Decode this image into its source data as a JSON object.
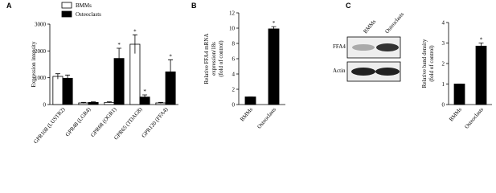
{
  "chart_data": [
    {
      "type": "bar",
      "panel_label": "A",
      "ylabel": [
        "Expression intensity"
      ],
      "categories": [
        "GPR108 (LUSTR2)",
        "GPR48 (LGR4)",
        "GPR68 (OGR1)",
        "GPR65 (TDAG8)",
        "GPR120 (FFA4)"
      ],
      "series": [
        {
          "name": "BMMs",
          "color": "#ffffff",
          "values": [
            1050,
            60,
            80,
            2250,
            60
          ],
          "errors": [
            100,
            20,
            20,
            350,
            20
          ],
          "annotations": [
            null,
            null,
            null,
            "*",
            null
          ]
        },
        {
          "name": "Osteoclasts",
          "color": "#000000",
          "values": [
            980,
            80,
            1720,
            280,
            1220
          ],
          "errors": [
            120,
            20,
            380,
            80,
            450
          ],
          "annotations": [
            null,
            null,
            "*",
            "*",
            "*"
          ]
        }
      ],
      "ylim": [
        0,
        3000
      ],
      "yticks": [
        0,
        1000,
        2000,
        3000
      ],
      "legend": "top-left"
    },
    {
      "type": "bar",
      "panel_label": "B",
      "ylabel": [
        "Relative FFA4 mRNA",
        "expression/18s",
        "(fold of control)"
      ],
      "categories": [
        "BMMs",
        "Osteoclasts"
      ],
      "values": [
        1,
        9.9
      ],
      "errors": [
        0,
        0.3
      ],
      "annotations": [
        null,
        "*"
      ],
      "color": "#000000",
      "ylim": [
        0,
        12
      ],
      "yticks": [
        0,
        2,
        4,
        6,
        8,
        10,
        12
      ]
    },
    {
      "type": "bar",
      "panel_label": "C",
      "ylabel": [
        "Relative band density",
        "(fold of control)"
      ],
      "blot": {
        "lanes": [
          "BMMs",
          "Osteoclasts"
        ],
        "rows": [
          "FFA4",
          "Actin"
        ]
      },
      "categories": [
        "BMMs",
        "Osteoclasts"
      ],
      "values": [
        1,
        2.85
      ],
      "errors": [
        0,
        0.15
      ],
      "annotations": [
        null,
        "*"
      ],
      "color": "#000000",
      "ylim": [
        0,
        4
      ],
      "yticks": [
        0,
        1,
        2,
        3,
        4
      ]
    }
  ]
}
